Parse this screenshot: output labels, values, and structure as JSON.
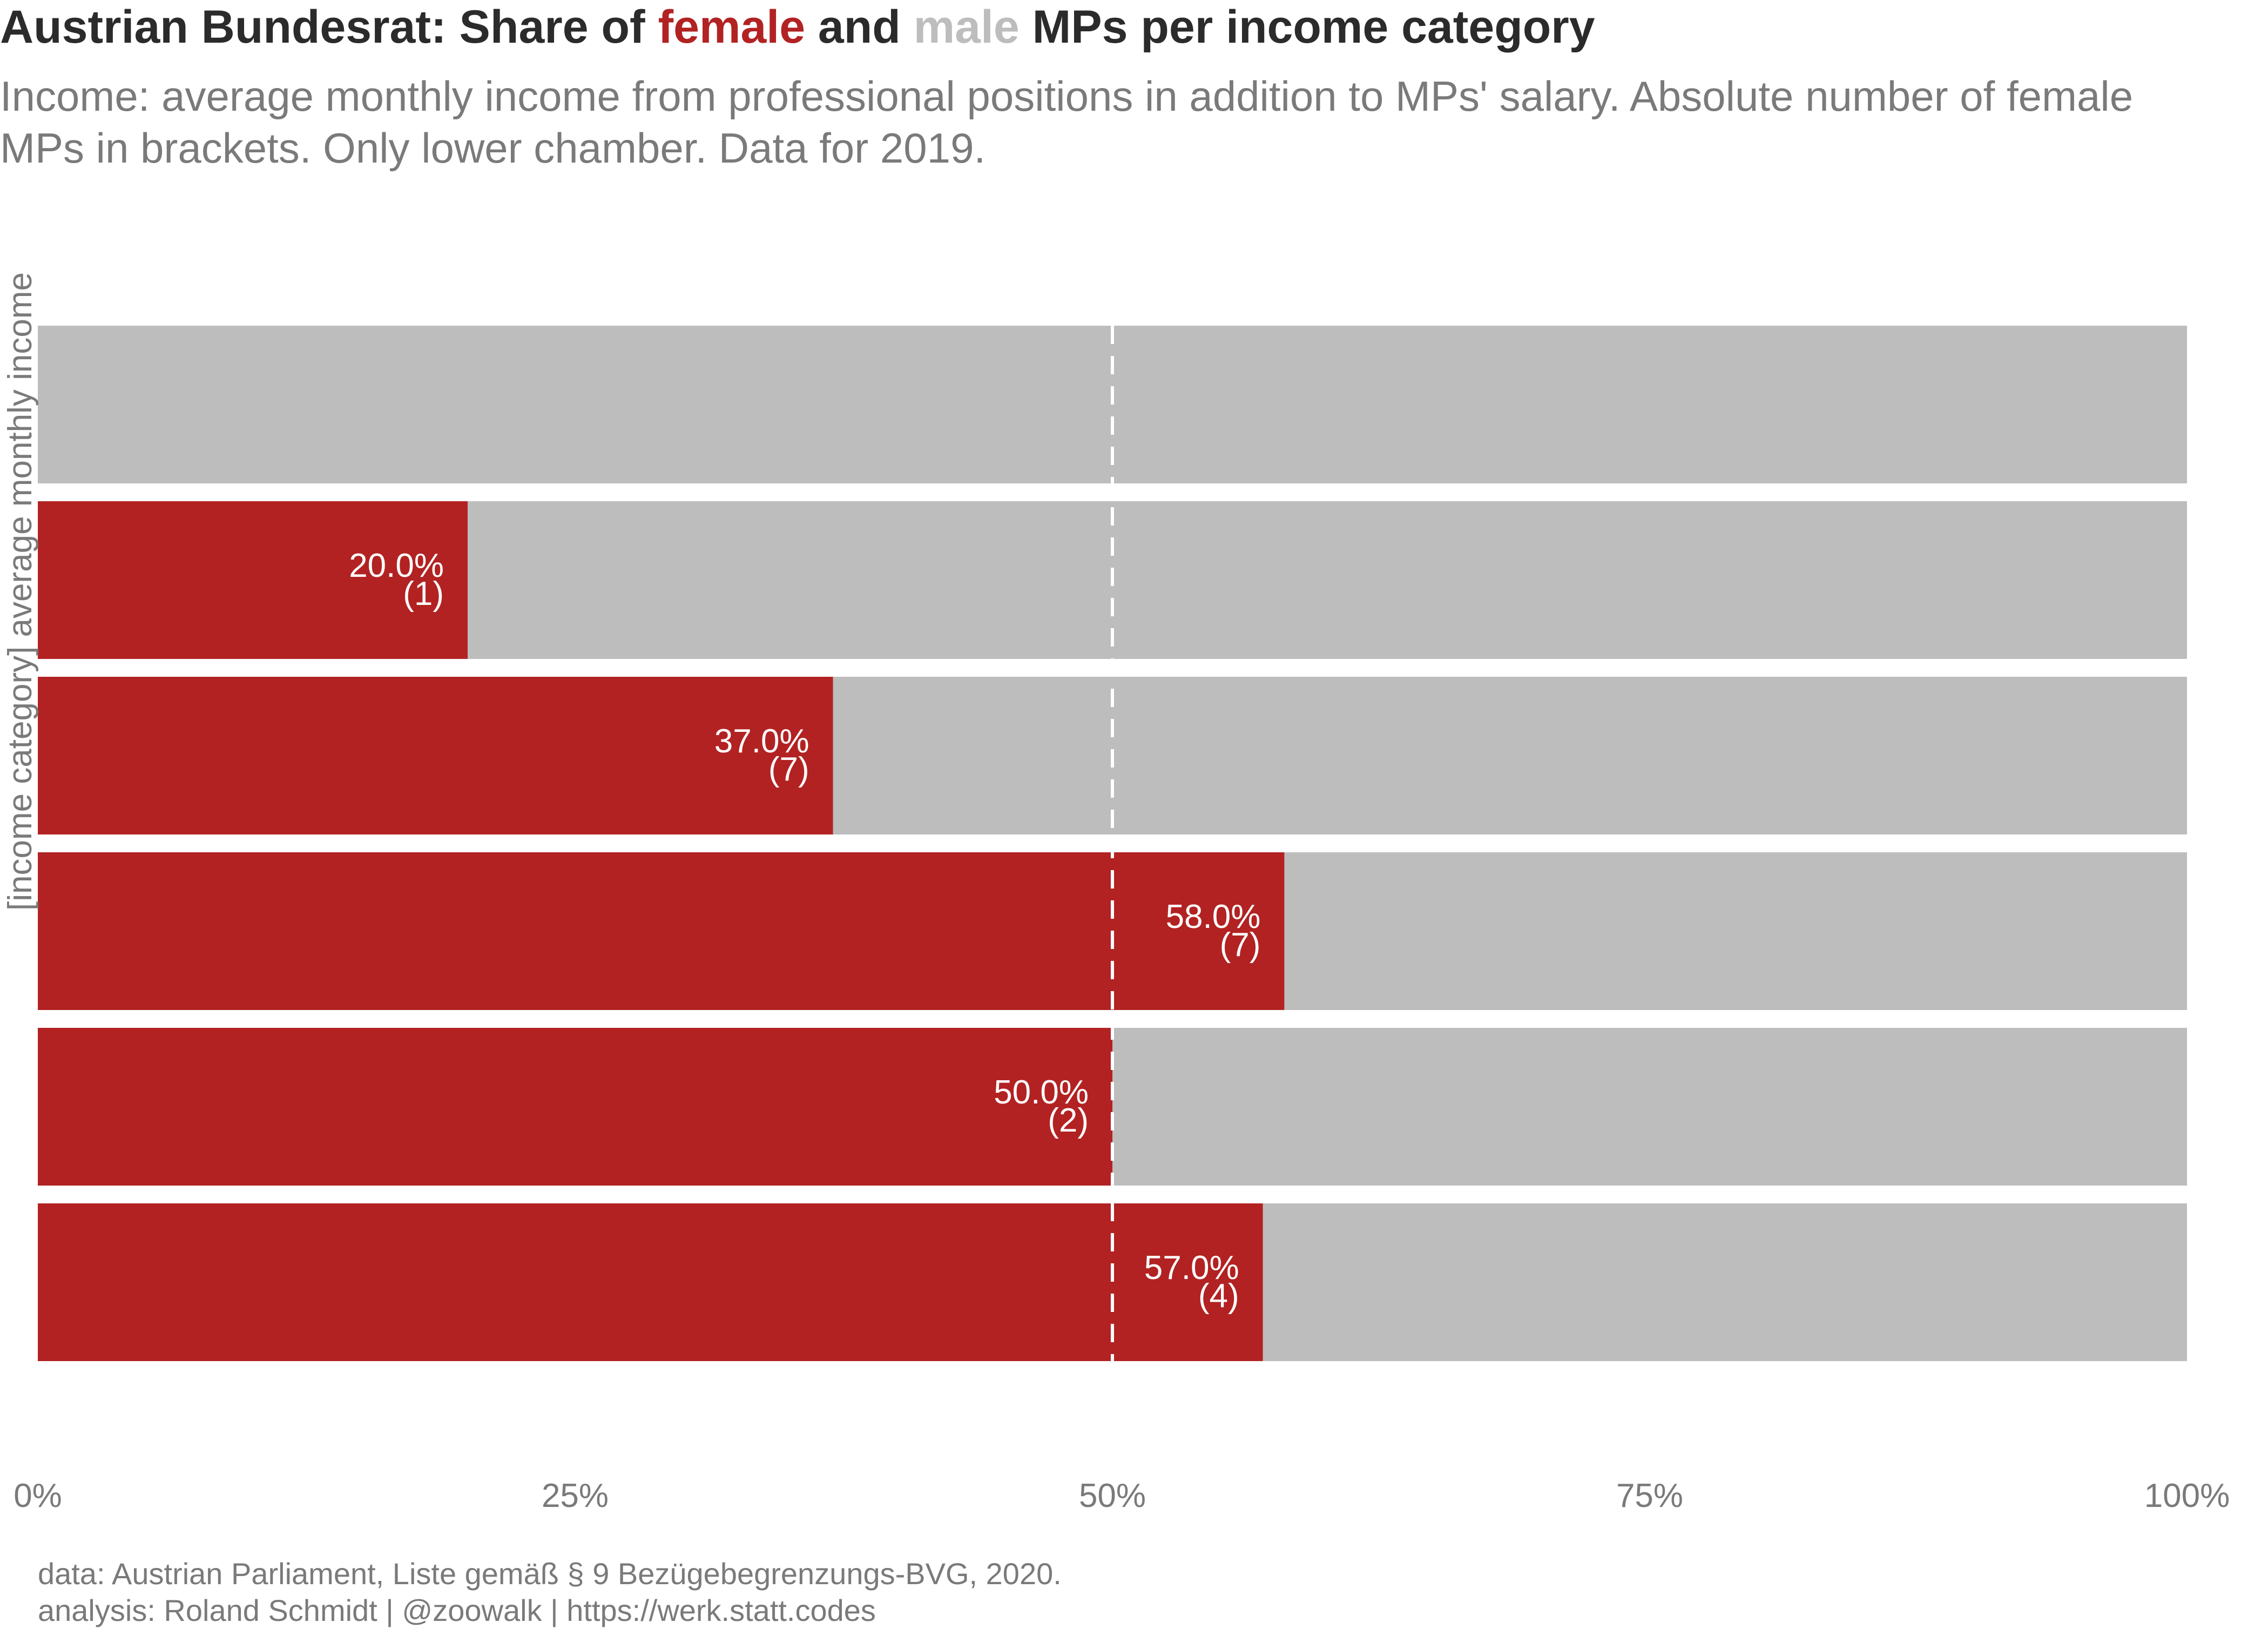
{
  "title": {
    "prefix": "Austrian Bundesrat: Share of ",
    "female_word": "female",
    "and_word": " and ",
    "male_word": "male",
    "suffix": " MPs per income category"
  },
  "subtitle": "Income: average monthly income from professional positions in addition to MPs' salary. Absolute number of female MPs in brackets. Only lower chamber. Data for 2019.",
  "caption": {
    "line1": "data: Austrian Parliament, Liste gemäß § 9 Bezügebegrenzungs-BVG, 2020.",
    "line2": "analysis: Roland Schmidt | @zoowalk | https://werk.statt.codes"
  },
  "colors": {
    "female": "#b22222",
    "male": "#bdbdbd",
    "reference_line": "#ffffff",
    "bar_label": "#ffffff",
    "axis_text": "#7a7a7a"
  },
  "chart_data": {
    "type": "bar",
    "orientation": "horizontal",
    "stacked": true,
    "ylabel": "[income category] average monthly income",
    "xlim": [
      0,
      1
    ],
    "xticks": [
      0,
      0.25,
      0.5,
      0.75,
      1.0
    ],
    "xtick_labels": [
      "0%",
      "25%",
      "50%",
      "75%",
      "100%"
    ],
    "categories": [
      "",
      "",
      "",
      "",
      "",
      ""
    ],
    "series": [
      {
        "name": "female",
        "values": [
          0,
          0.2,
          0.37,
          0.58,
          0.5,
          0.57
        ]
      },
      {
        "name": "male",
        "values": [
          1.0,
          0.8,
          0.63,
          0.42,
          0.5,
          0.43
        ]
      }
    ],
    "bar_labels": [
      {
        "pct": "",
        "count": ""
      },
      {
        "pct": "20.0%",
        "count": "(1)"
      },
      {
        "pct": "37.0%",
        "count": "(7)"
      },
      {
        "pct": "58.0%",
        "count": "(7)"
      },
      {
        "pct": "50.0%",
        "count": "(2)"
      },
      {
        "pct": "57.0%",
        "count": "(4)"
      }
    ],
    "reference_line": {
      "x": 0.5,
      "style": "dashed"
    },
    "grid": false,
    "legend": "none (encoded in title colors)"
  }
}
